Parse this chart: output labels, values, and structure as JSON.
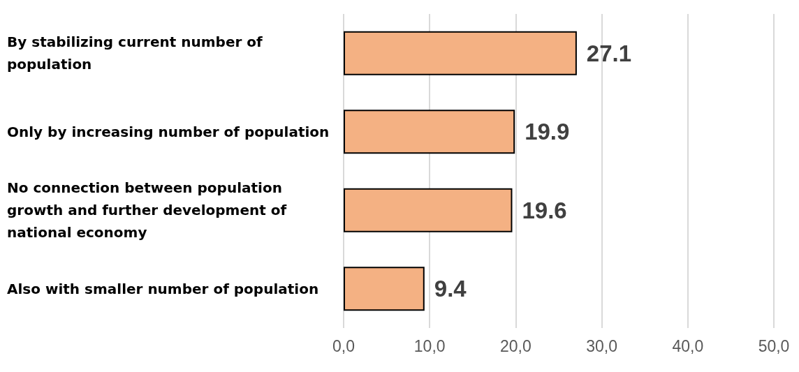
{
  "chart_data": {
    "type": "bar",
    "orientation": "horizontal",
    "categories": [
      "By stabilizing current number of population",
      "Only by increasing number of population",
      "No connection between population growth and further development of national economy",
      "Also with smaller number of population"
    ],
    "values": [
      27.1,
      19.9,
      19.6,
      9.4
    ],
    "color": "#f4b183",
    "xlim": [
      0,
      50
    ],
    "xticks": [
      {
        "value": 0,
        "label": "0,0"
      },
      {
        "value": 10,
        "label": "10,0"
      },
      {
        "value": 20,
        "label": "20,0"
      },
      {
        "value": 30,
        "label": "30,0"
      },
      {
        "value": 40,
        "label": "40,0"
      },
      {
        "value": 50,
        "label": "50,0"
      }
    ],
    "grid": "x",
    "data_labels": true
  }
}
